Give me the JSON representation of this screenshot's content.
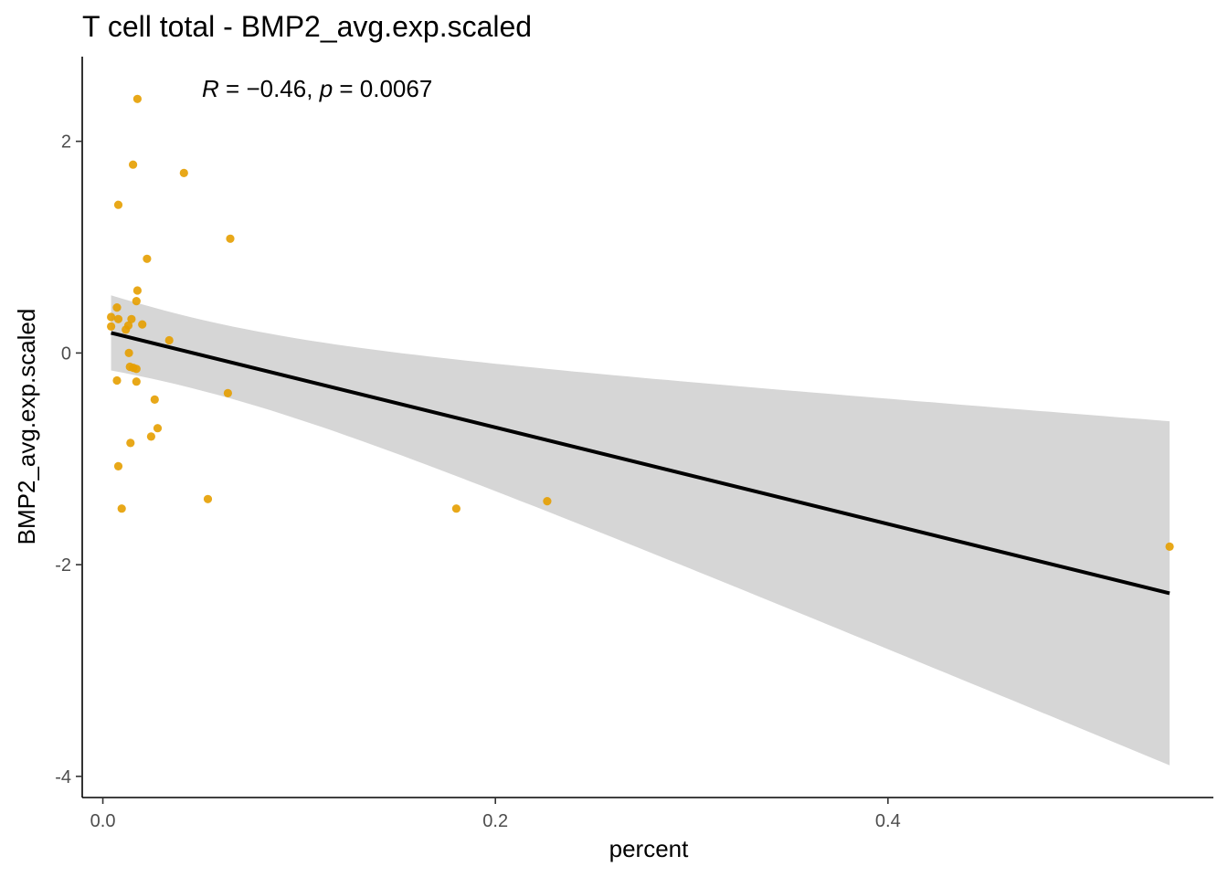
{
  "chart_data": {
    "type": "scatter",
    "title": "T cell total - BMP2_avg.exp.scaled",
    "xlabel": "percent",
    "ylabel": "BMP2_avg.exp.scaled",
    "xlim": [
      -0.0105,
      0.5658
    ],
    "ylim": [
      -4.2,
      2.8
    ],
    "x_ticks": [
      0.0,
      0.2,
      0.4
    ],
    "x_tick_labels": [
      "0.0",
      "0.2",
      "0.4"
    ],
    "y_ticks": [
      -4,
      -2,
      0,
      2
    ],
    "y_tick_labels": [
      "-4",
      "-2",
      "0",
      "2"
    ],
    "grid": false,
    "annotation": {
      "r_symbol": "R",
      "r_value": " = −0.46, ",
      "p_symbol": "p",
      "p_value": " = 0.0067",
      "x": 0.0505,
      "y": 2.5
    },
    "points": {
      "color": "#E69F00",
      "x": [
        0.0176,
        0.0154,
        0.0413,
        0.0079,
        0.0649,
        0.0225,
        0.0176,
        0.0171,
        0.0072,
        0.0042,
        0.0079,
        0.0146,
        0.0042,
        0.0201,
        0.013,
        0.0117,
        0.0338,
        0.0133,
        0.0138,
        0.0155,
        0.0171,
        0.0072,
        0.0171,
        0.0637,
        0.0264,
        0.0279,
        0.0246,
        0.0141,
        0.0079,
        0.0535,
        0.0096,
        0.1801,
        0.2264,
        0.5435
      ],
      "y": [
        2.4,
        1.78,
        1.7,
        1.4,
        1.08,
        0.89,
        0.59,
        0.49,
        0.43,
        0.34,
        0.32,
        0.32,
        0.25,
        0.27,
        0.26,
        0.22,
        0.12,
        0.0,
        -0.13,
        -0.14,
        -0.15,
        -0.26,
        -0.27,
        -0.38,
        -0.44,
        -0.71,
        -0.79,
        -0.85,
        -1.07,
        -1.38,
        -1.47,
        -1.47,
        -1.4,
        -1.83
      ]
    },
    "fit": {
      "type": "linear",
      "color": "#000000",
      "x_range": [
        0.0042,
        0.5435
      ],
      "y_at_start": 0.19,
      "y_at_end": -2.27,
      "ci_color": "#d6d6d6",
      "ci_lower_at_start": -0.16,
      "ci_upper_at_start": 0.55,
      "ci_lower_at_end": -3.9,
      "ci_upper_at_end": -0.65,
      "x_mean": 0.0421
    }
  }
}
